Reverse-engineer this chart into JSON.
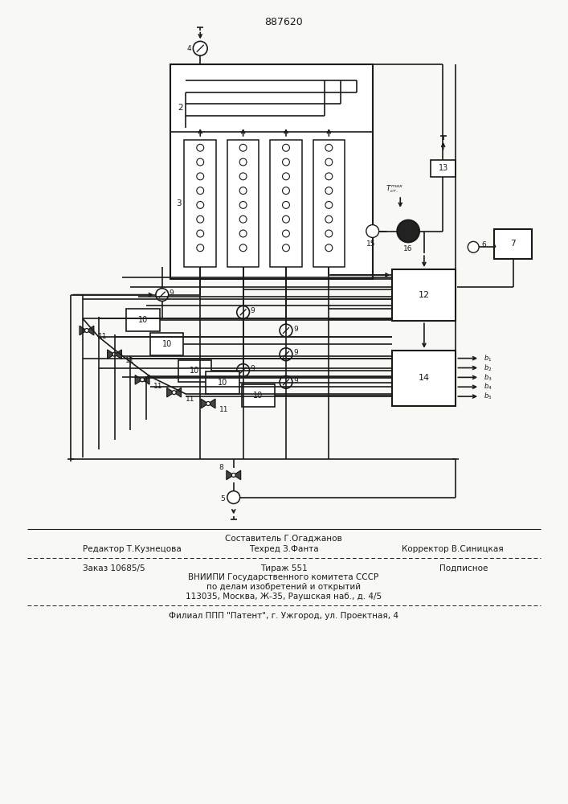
{
  "title": "887620",
  "bg": "#f8f8f4",
  "lc": "#1a1a1a",
  "footer_sestavitel": "Составитель Г.Огаджанов",
  "footer_redaktor": "Редактор Т.Кузнецова",
  "footer_tehred": "Техред З.Фанта",
  "footer_korrektor": "Корректор В.Синицкая",
  "footer_zakaz": "Заказ 10685/5",
  "footer_tirazh": "Тираж 551",
  "footer_podpisnoe": "Подписное",
  "footer_vniip1": "ВНИИПИ Государственного комитета СССР",
  "footer_vniip2": "по делам изобретений и открытий",
  "footer_addr": "113035, Москва, Ж-35, Раушская наб., д. 4/5",
  "footer_filial": "Филиал ППП \"Патент\", г. Ужгород, ул. Проектная, 4"
}
